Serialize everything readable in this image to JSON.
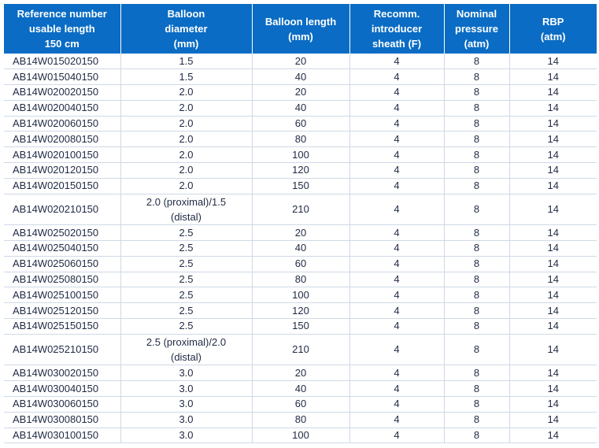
{
  "headers": [
    "Reference number\nusable length\n150 cm",
    "Balloon\ndiameter\n(mm)",
    "Balloon length\n(mm)",
    "Recomm.\nintroducer\nsheath (F)",
    "Nominal\npressure\n(atm)",
    "RBP\n(atm)"
  ],
  "rows": [
    {
      "ref": "AB14W015020150",
      "diameter": "1.5",
      "length": "20",
      "sheath": "4",
      "nominal": "8",
      "rbp": "14"
    },
    {
      "ref": "AB14W015040150",
      "diameter": "1.5",
      "length": "40",
      "sheath": "4",
      "nominal": "8",
      "rbp": "14"
    },
    {
      "ref": "AB14W020020150",
      "diameter": "2.0",
      "length": "20",
      "sheath": "4",
      "nominal": "8",
      "rbp": "14"
    },
    {
      "ref": "AB14W020040150",
      "diameter": "2.0",
      "length": "40",
      "sheath": "4",
      "nominal": "8",
      "rbp": "14"
    },
    {
      "ref": "AB14W020060150",
      "diameter": "2.0",
      "length": "60",
      "sheath": "4",
      "nominal": "8",
      "rbp": "14"
    },
    {
      "ref": "AB14W020080150",
      "diameter": "2.0",
      "length": "80",
      "sheath": "4",
      "nominal": "8",
      "rbp": "14"
    },
    {
      "ref": "AB14W020100150",
      "diameter": "2.0",
      "length": "100",
      "sheath": "4",
      "nominal": "8",
      "rbp": "14"
    },
    {
      "ref": "AB14W020120150",
      "diameter": "2.0",
      "length": "120",
      "sheath": "4",
      "nominal": "8",
      "rbp": "14"
    },
    {
      "ref": "AB14W020150150",
      "diameter": "2.0",
      "length": "150",
      "sheath": "4",
      "nominal": "8",
      "rbp": "14"
    },
    {
      "ref": "AB14W020210150",
      "diameter": "2.0 (proximal)/1.5\n(distal)",
      "length": "210",
      "sheath": "4",
      "nominal": "8",
      "rbp": "14"
    },
    {
      "ref": "AB14W025020150",
      "diameter": "2.5",
      "length": "20",
      "sheath": "4",
      "nominal": "8",
      "rbp": "14"
    },
    {
      "ref": "AB14W025040150",
      "diameter": "2.5",
      "length": "40",
      "sheath": "4",
      "nominal": "8",
      "rbp": "14"
    },
    {
      "ref": "AB14W025060150",
      "diameter": "2.5",
      "length": "60",
      "sheath": "4",
      "nominal": "8",
      "rbp": "14"
    },
    {
      "ref": "AB14W025080150",
      "diameter": "2.5",
      "length": "80",
      "sheath": "4",
      "nominal": "8",
      "rbp": "14"
    },
    {
      "ref": "AB14W025100150",
      "diameter": "2.5",
      "length": "100",
      "sheath": "4",
      "nominal": "8",
      "rbp": "14"
    },
    {
      "ref": "AB14W025120150",
      "diameter": "2.5",
      "length": "120",
      "sheath": "4",
      "nominal": "8",
      "rbp": "14"
    },
    {
      "ref": "AB14W025150150",
      "diameter": "2.5",
      "length": "150",
      "sheath": "4",
      "nominal": "8",
      "rbp": "14"
    },
    {
      "ref": "AB14W025210150",
      "diameter": "2.5 (proximal)/2.0\n(distal)",
      "length": "210",
      "sheath": "4",
      "nominal": "8",
      "rbp": "14"
    },
    {
      "ref": "AB14W030020150",
      "diameter": "3.0",
      "length": "20",
      "sheath": "4",
      "nominal": "8",
      "rbp": "14"
    },
    {
      "ref": "AB14W030040150",
      "diameter": "3.0",
      "length": "40",
      "sheath": "4",
      "nominal": "8",
      "rbp": "14"
    },
    {
      "ref": "AB14W030060150",
      "diameter": "3.0",
      "length": "60",
      "sheath": "4",
      "nominal": "8",
      "rbp": "14"
    },
    {
      "ref": "AB14W030080150",
      "diameter": "3.0",
      "length": "80",
      "sheath": "4",
      "nominal": "8",
      "rbp": "14"
    },
    {
      "ref": "AB14W030100150",
      "diameter": "3.0",
      "length": "100",
      "sheath": "4",
      "nominal": "8",
      "rbp": "14"
    }
  ],
  "colors": {
    "header_bg": "#0a6cc4",
    "header_text": "#ffffff",
    "body_text": "#1f2a44",
    "grid": "#cfd9e6"
  }
}
